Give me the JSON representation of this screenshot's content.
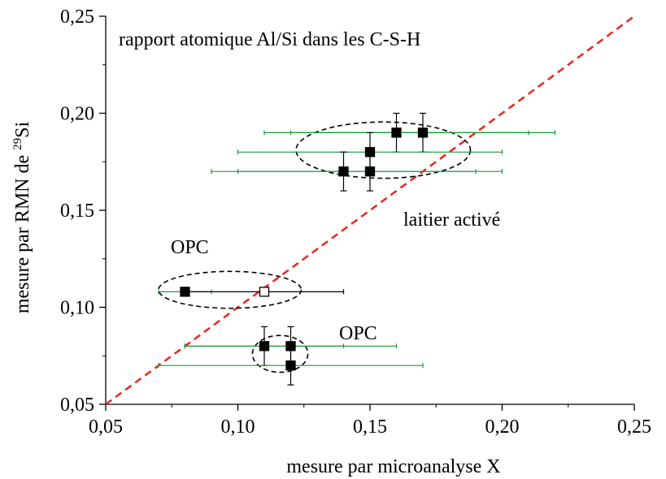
{
  "chart_data": {
    "type": "scatter",
    "title": "rapport atomique Al/Si dans les C-S-H",
    "xlabel": "mesure par microanalyse X",
    "ylabel_main": "mesure par RMN de ",
    "ylabel_sup": "29",
    "ylabel_tail": "Si",
    "xlim": [
      0.05,
      0.25
    ],
    "ylim": [
      0.05,
      0.25
    ],
    "x_ticks": [
      {
        "value": 0.05,
        "label": "0,05"
      },
      {
        "value": 0.1,
        "label": "0,10"
      },
      {
        "value": 0.15,
        "label": "0,15"
      },
      {
        "value": 0.2,
        "label": "0,20"
      },
      {
        "value": 0.25,
        "label": "0,25"
      }
    ],
    "y_ticks": [
      {
        "value": 0.05,
        "label": "0,05"
      },
      {
        "value": 0.1,
        "label": "0,10"
      },
      {
        "value": 0.15,
        "label": "0,15"
      },
      {
        "value": 0.2,
        "label": "0,20"
      },
      {
        "value": 0.25,
        "label": "0,25"
      }
    ],
    "grid": false,
    "reference_line": {
      "from": [
        0.05,
        0.05
      ],
      "to": [
        0.25,
        0.25
      ],
      "style": "dashed",
      "color": "#e8271f"
    },
    "points": [
      {
        "x": 0.16,
        "y": 0.19,
        "xerr": [
          0.11,
          0.21
        ],
        "xerr_outer": [
          0.12,
          0.22
        ],
        "yerr": [
          0.18,
          0.2
        ],
        "filled": true
      },
      {
        "x": 0.17,
        "y": 0.19,
        "yerr": [
          0.18,
          0.2
        ],
        "filled": true
      },
      {
        "x": 0.15,
        "y": 0.18,
        "xerr": [
          0.1,
          0.2
        ],
        "yerr": [
          0.17,
          0.19
        ],
        "filled": true
      },
      {
        "x": 0.14,
        "y": 0.17,
        "xerr": [
          0.09,
          0.19
        ],
        "xerr_outer": [
          0.1,
          0.2
        ],
        "yerr": [
          0.16,
          0.18
        ],
        "filled": true
      },
      {
        "x": 0.15,
        "y": 0.17,
        "yerr": [
          0.16,
          0.18
        ],
        "filled": true
      },
      {
        "x": 0.08,
        "y": 0.108,
        "xerr": [
          0.07,
          0.09
        ],
        "filled": true
      },
      {
        "x": 0.11,
        "y": 0.108,
        "xerr_black": [
          0.08,
          0.14
        ],
        "filled": false
      },
      {
        "x": 0.11,
        "y": 0.08,
        "xerr": [
          0.08,
          0.14
        ],
        "xerr_outer": [
          0.08,
          0.16
        ],
        "yerr": [
          0.07,
          0.09
        ],
        "filled": true
      },
      {
        "x": 0.12,
        "y": 0.08,
        "yerr": [
          0.07,
          0.09
        ],
        "filled": true
      },
      {
        "x": 0.12,
        "y": 0.07,
        "xerr": [
          0.07,
          0.17
        ],
        "yerr": [
          0.06,
          0.08
        ],
        "filled": true
      }
    ],
    "groups": [
      {
        "label": "laitier activé",
        "cx": 0.155,
        "cy": 0.181,
        "rx": 0.033,
        "ry": 0.0145
      },
      {
        "label": "OPC",
        "cx": 0.097,
        "cy": 0.109,
        "rx": 0.027,
        "ry": 0.0095
      },
      {
        "label": "OPC",
        "cx": 0.116,
        "cy": 0.076,
        "rx": 0.0105,
        "ry": 0.0095
      }
    ],
    "colors": {
      "errorbar_x": "#1a9a3c",
      "errorbar_y": "#000000",
      "diagonal": "#e8271f",
      "ellipse": "#000000"
    }
  }
}
